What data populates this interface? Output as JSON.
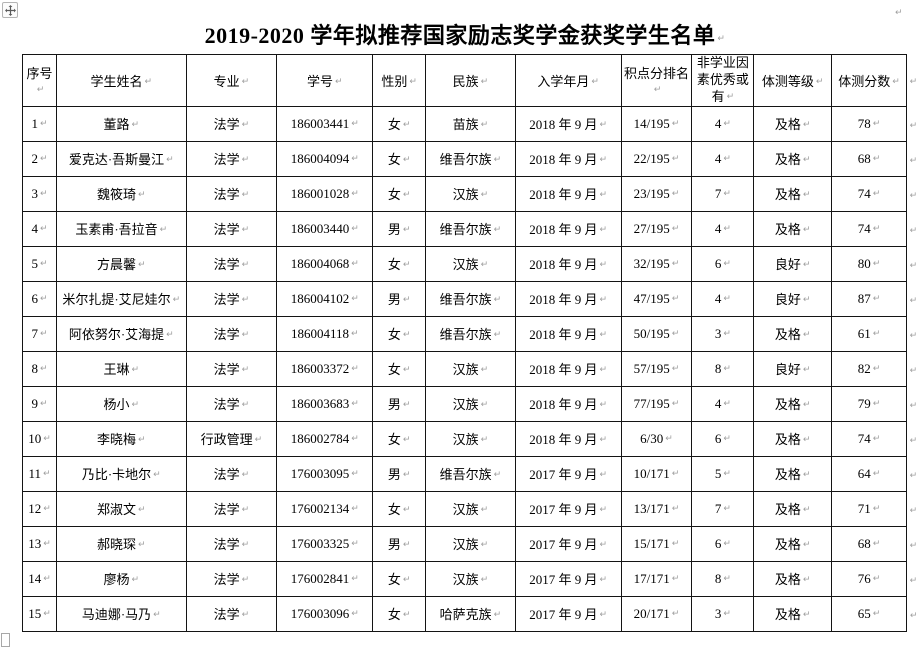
{
  "document": {
    "title": "2019-2020 学年拟推荐国家励志奖学金获奖学生名单"
  },
  "icons": {
    "table_move_handle": "move-cross-icon"
  },
  "table": {
    "headers": [
      "序号",
      "学生姓名",
      "专业",
      "学号",
      "性别",
      "民族",
      "入学年月",
      "积点分排名",
      "非学业因素优秀或有",
      "体测等级",
      "体测分数"
    ],
    "rows": [
      [
        "1",
        "董路",
        "法学",
        "186003441",
        "女",
        "苗族",
        "2018 年 9 月",
        "14/195",
        "4",
        "及格",
        "78"
      ],
      [
        "2",
        "爱克达·吾斯曼江",
        "法学",
        "186004094",
        "女",
        "维吾尔族",
        "2018 年 9 月",
        "22/195",
        "4",
        "及格",
        "68"
      ],
      [
        "3",
        "魏筱琦",
        "法学",
        "186001028",
        "女",
        "汉族",
        "2018 年 9 月",
        "23/195",
        "7",
        "及格",
        "74"
      ],
      [
        "4",
        "玉素甫·吾拉音",
        "法学",
        "186003440",
        "男",
        "维吾尔族",
        "2018 年 9 月",
        "27/195",
        "4",
        "及格",
        "74"
      ],
      [
        "5",
        "方晨馨",
        "法学",
        "186004068",
        "女",
        "汉族",
        "2018 年 9 月",
        "32/195",
        "6",
        "良好",
        "80"
      ],
      [
        "6",
        "米尔扎提·艾尼娃尔",
        "法学",
        "186004102",
        "男",
        "维吾尔族",
        "2018 年 9 月",
        "47/195",
        "4",
        "良好",
        "87"
      ],
      [
        "7",
        "阿依努尔·艾海提",
        "法学",
        "186004118",
        "女",
        "维吾尔族",
        "2018 年 9 月",
        "50/195",
        "3",
        "及格",
        "61"
      ],
      [
        "8",
        "王琳",
        "法学",
        "186003372",
        "女",
        "汉族",
        "2018 年 9 月",
        "57/195",
        "8",
        "良好",
        "82"
      ],
      [
        "9",
        "杨小",
        "法学",
        "186003683",
        "男",
        "汉族",
        "2018 年 9 月",
        "77/195",
        "4",
        "及格",
        "79"
      ],
      [
        "10",
        "李晓梅",
        "行政管理",
        "186002784",
        "女",
        "汉族",
        "2018 年 9 月",
        "6/30",
        "6",
        "及格",
        "74"
      ],
      [
        "11",
        "乃比·卡地尔",
        "法学",
        "176003095",
        "男",
        "维吾尔族",
        "2017 年 9 月",
        "10/171",
        "5",
        "及格",
        "64"
      ],
      [
        "12",
        "郑淑文",
        "法学",
        "176002134",
        "女",
        "汉族",
        "2017 年 9 月",
        "13/171",
        "7",
        "及格",
        "71"
      ],
      [
        "13",
        "郝晓琛",
        "法学",
        "176003325",
        "男",
        "汉族",
        "2017 年 9 月",
        "15/171",
        "6",
        "及格",
        "68"
      ],
      [
        "14",
        "廖杨",
        "法学",
        "176002841",
        "女",
        "汉族",
        "2017 年 9 月",
        "17/171",
        "8",
        "及格",
        "76"
      ],
      [
        "15",
        "马迪娜·马乃",
        "法学",
        "176003096",
        "女",
        "哈萨克族",
        "2017 年 9 月",
        "20/171",
        "3",
        "及格",
        "65"
      ]
    ]
  }
}
